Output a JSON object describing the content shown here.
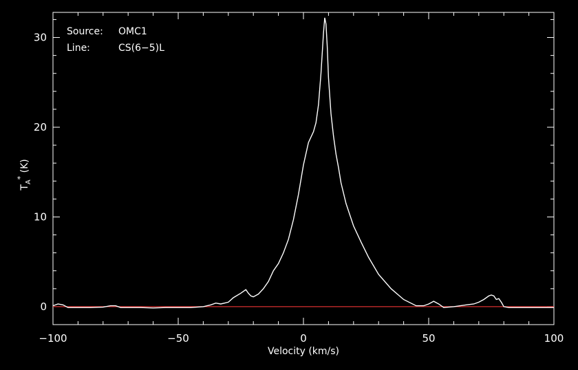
{
  "info": {
    "source_label": "Source:",
    "source_value": "OMC1",
    "line_label": "Line:",
    "line_value": "CS(6−5)L"
  },
  "chart_data": {
    "type": "line",
    "xlabel": "Velocity (km/s)",
    "ylabel": "T_A^* (K)",
    "ylabel_main": "T",
    "ylabel_sub": "A",
    "ylabel_sup": "*",
    "ylabel_unit": " (K)",
    "xlim": [
      -100,
      100
    ],
    "ylim": [
      -2,
      32.8
    ],
    "x_ticks": [
      -100,
      -50,
      0,
      50,
      100
    ],
    "x_tick_labels": [
      "−100",
      "−50",
      "0",
      "50",
      "100"
    ],
    "y_ticks": [
      0,
      10,
      20,
      30
    ],
    "y_tick_labels": [
      "0",
      "10",
      "20",
      "30"
    ],
    "baseline": 0,
    "colors": {
      "background": "#000000",
      "spectrum": "#ffffff",
      "baseline": "#d93030",
      "axes": "#ffffff"
    },
    "series": [
      {
        "x": [
          -100,
          -98,
          -96,
          -94,
          -90,
          -85,
          -80,
          -77,
          -75,
          -73,
          -70,
          -65,
          -60,
          -55,
          -50,
          -45,
          -40,
          -37,
          -35,
          -33,
          -30,
          -28,
          -25,
          -23,
          -22,
          -21,
          -20,
          -18,
          -16,
          -14,
          -12,
          -10,
          -8,
          -6,
          -4,
          -2,
          0,
          2,
          4,
          5,
          6,
          7,
          8,
          8.5,
          9,
          9.5,
          10,
          11,
          12,
          13,
          14,
          15,
          17,
          20,
          23,
          26,
          30,
          35,
          40,
          45,
          48,
          50,
          52,
          54,
          56,
          60,
          65,
          68,
          70,
          72,
          74,
          75,
          76,
          77,
          78,
          79,
          80,
          82,
          85,
          90,
          95,
          100
        ],
        "y": [
          0.1,
          0.3,
          0.2,
          -0.1,
          -0.1,
          -0.1,
          -0.05,
          0.1,
          0.1,
          -0.1,
          -0.1,
          -0.1,
          -0.15,
          -0.1,
          -0.1,
          -0.1,
          0.0,
          0.2,
          0.4,
          0.3,
          0.5,
          1.0,
          1.5,
          1.9,
          1.5,
          1.2,
          1.1,
          1.4,
          2.0,
          2.8,
          4.0,
          4.8,
          6.0,
          7.5,
          9.7,
          12.5,
          15.8,
          18.3,
          19.5,
          20.5,
          22.5,
          26.0,
          30.5,
          32.2,
          31.5,
          29.0,
          25.5,
          21.5,
          19.0,
          17.0,
          15.5,
          13.8,
          11.5,
          9.0,
          7.2,
          5.5,
          3.6,
          2.0,
          0.8,
          0.1,
          0.1,
          0.3,
          0.6,
          0.3,
          -0.1,
          0.0,
          0.2,
          0.3,
          0.5,
          0.8,
          1.2,
          1.3,
          1.2,
          0.8,
          0.9,
          0.5,
          0.0,
          -0.1,
          -0.1,
          -0.1,
          -0.1,
          -0.1
        ]
      }
    ]
  }
}
